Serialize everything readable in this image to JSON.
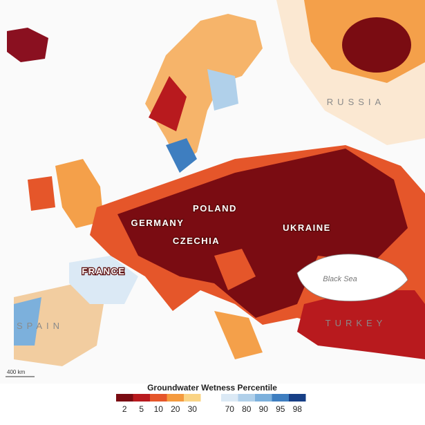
{
  "map": {
    "labels": {
      "russia": "RUSSIA",
      "poland": "POLAND",
      "germany": "GERMANY",
      "ukraine": "UKRAINE",
      "czechia": "CZECHIA",
      "france": "FRANCE",
      "black_sea": "Black Sea",
      "spain": "SPAIN",
      "turkey": "TURKEY"
    },
    "scale": "400 km"
  },
  "legend": {
    "title": "Groundwater Wetness Percentile",
    "dry": [
      {
        "label": 2,
        "color": "#7a0c12"
      },
      {
        "label": 5,
        "color": "#b81a1e"
      },
      {
        "label": 10,
        "color": "#e5562a"
      },
      {
        "label": 20,
        "color": "#f49a3e"
      },
      {
        "label": 30,
        "color": "#fad485"
      }
    ],
    "wet": [
      {
        "label": 70,
        "color": "#dbe9f5"
      },
      {
        "label": 80,
        "color": "#b0d0ea"
      },
      {
        "label": 90,
        "color": "#7cb0dc"
      },
      {
        "label": 95,
        "color": "#3e7ec0"
      },
      {
        "label": 98,
        "color": "#173f86"
      }
    ]
  }
}
